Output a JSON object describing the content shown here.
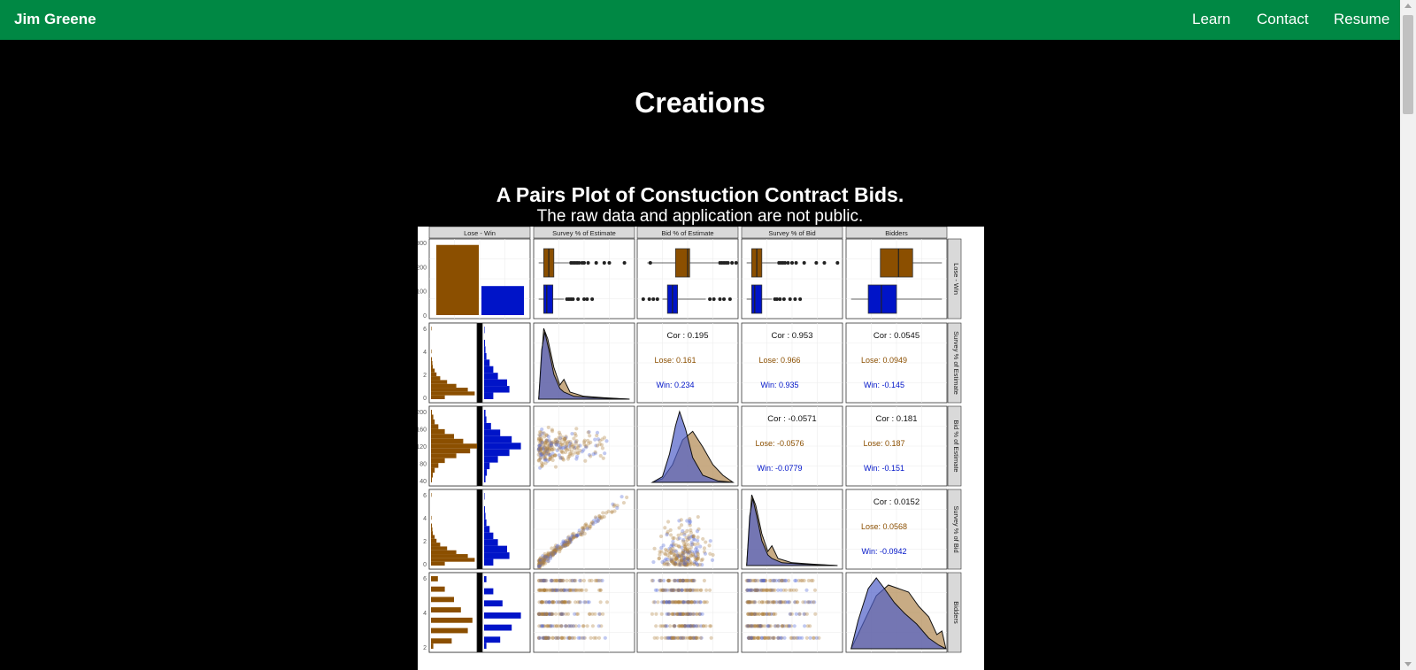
{
  "navbar": {
    "brand": "Jim Greene",
    "links": [
      {
        "label": "Learn"
      },
      {
        "label": "Contact"
      },
      {
        "label": "Resume"
      }
    ],
    "color": "#008844"
  },
  "page": {
    "title": "Creations",
    "background": "#000000"
  },
  "section": {
    "title": "A Pairs Plot of Constuction Contract Bids.",
    "subtitle": "The raw data and application are not public."
  },
  "colors": {
    "lose": "#8B4F00",
    "win": "#0014C8"
  },
  "chart_data": {
    "type": "pairs",
    "variables": [
      "Lose - Win",
      "Survey % of Estimate",
      "Bid % of Estimate",
      "Survey % of Bid",
      "Bidders"
    ],
    "groups": [
      "Lose",
      "Win"
    ],
    "counts": {
      "Lose": 290,
      "Win": 120,
      "ylim": [
        0,
        300
      ],
      "ticks": [
        "0",
        "100",
        "200",
        "300"
      ]
    },
    "correlations": [
      {
        "pair": [
          "Survey % of Estimate",
          "Bid % of Estimate"
        ],
        "cor": "Cor : 0.195",
        "lose": "Lose: 0.161",
        "win": "Win: 0.234"
      },
      {
        "pair": [
          "Survey % of Estimate",
          "Survey % of Bid"
        ],
        "cor": "Cor : 0.953",
        "lose": "Lose: 0.966",
        "win": "Win: 0.935"
      },
      {
        "pair": [
          "Survey % of Estimate",
          "Bidders"
        ],
        "cor": "Cor : 0.0545",
        "lose": "Lose: 0.0949",
        "win": "Win: -0.145"
      },
      {
        "pair": [
          "Bid % of Estimate",
          "Survey % of Bid"
        ],
        "cor": "Cor : -0.0571",
        "lose": "Lose: -0.0576",
        "win": "Win: -0.0779"
      },
      {
        "pair": [
          "Bid % of Estimate",
          "Bidders"
        ],
        "cor": "Cor : 0.181",
        "lose": "Lose: 0.187",
        "win": "Win: -0.151"
      },
      {
        "pair": [
          "Survey % of Bid",
          "Bidders"
        ],
        "cor": "Cor : 0.0152",
        "lose": "Lose: 0.0568",
        "win": "Win: -0.0942"
      }
    ],
    "row_ticks": {
      "Survey % of Estimate": [
        "0",
        "2",
        "4",
        "6"
      ],
      "Bid % of Estimate": [
        "40",
        "80",
        "120",
        "160",
        "200"
      ],
      "Survey % of Bid": [
        "0",
        "2",
        "4",
        "6"
      ],
      "Bidders": [
        "2",
        "4",
        "6"
      ]
    }
  }
}
